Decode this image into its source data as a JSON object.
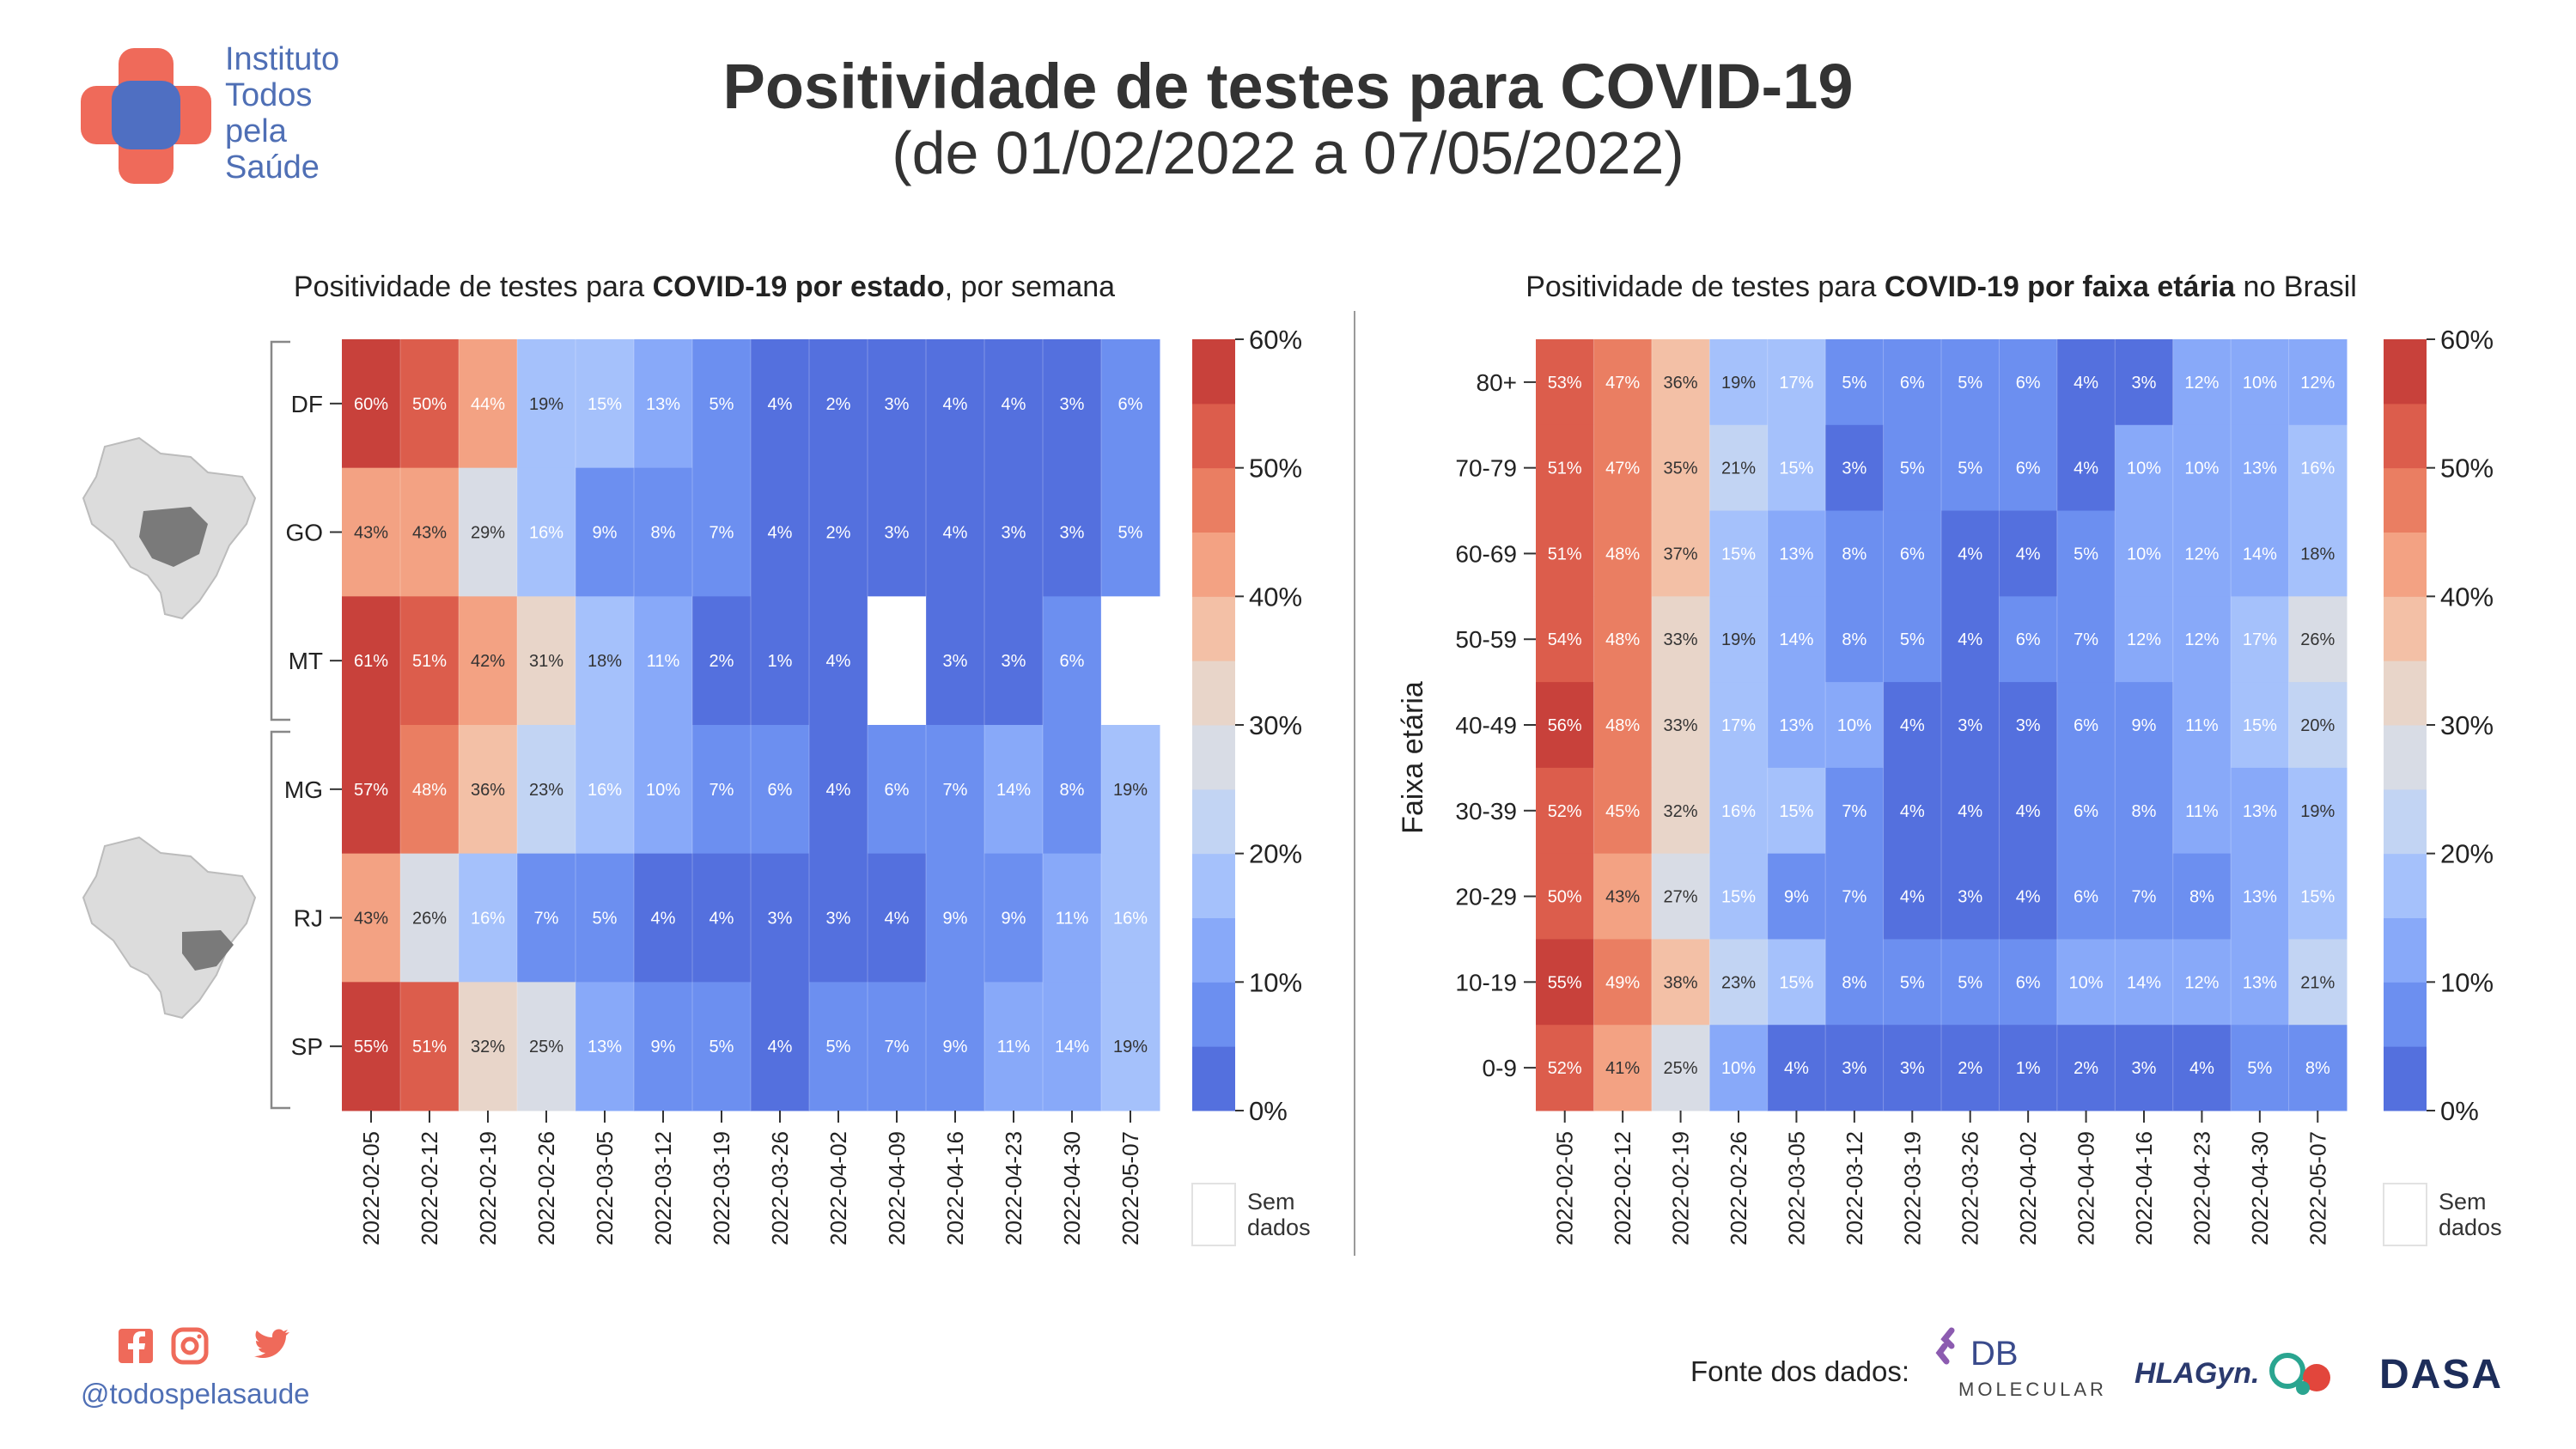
{
  "header": {
    "logo_lines": [
      "Instituto",
      "Todos",
      "pela",
      "Saúde"
    ],
    "title": "Positividade de testes para COVID-19",
    "subtitle": "(de 01/02/2022 a 07/05/2022)"
  },
  "left_panel": {
    "title_pre": "Positividade de testes para ",
    "title_bold": "COVID-19 por estado",
    "title_post": ", por semana"
  },
  "right_panel": {
    "title_pre": "Positividade de testes para ",
    "title_bold": "COVID-19 por faixa etária",
    "title_post": " no Brasil"
  },
  "colorbar": {
    "ticks": [
      "0%",
      "10%",
      "20%",
      "30%",
      "40%",
      "50%",
      "60%"
    ],
    "missing_label_line1": "Sem",
    "missing_label_line2": "dados",
    "colors": [
      "#5470de",
      "#6c8ff0",
      "#88a9f9",
      "#a5c1fb",
      "#c2d4f3",
      "#d8dce5",
      "#e8d5c9",
      "#f3c0a6",
      "#f3a283",
      "#ea7e62",
      "#dc5d4c",
      "#c8413b"
    ]
  },
  "chart_data": [
    {
      "type": "heatmap",
      "x": [
        "2022-02-05",
        "2022-02-12",
        "2022-02-19",
        "2022-02-26",
        "2022-03-05",
        "2022-03-12",
        "2022-03-19",
        "2022-03-26",
        "2022-04-02",
        "2022-04-09",
        "2022-04-16",
        "2022-04-23",
        "2022-04-30",
        "2022-05-07"
      ],
      "y": [
        "DF",
        "GO",
        "MT",
        "MG",
        "RJ",
        "SP"
      ],
      "values": [
        [
          60,
          50,
          44,
          19,
          15,
          13,
          5,
          4,
          2,
          3,
          4,
          4,
          3,
          6
        ],
        [
          43,
          43,
          29,
          16,
          9,
          8,
          7,
          4,
          2,
          3,
          4,
          3,
          3,
          5
        ],
        [
          61,
          51,
          42,
          31,
          18,
          11,
          2,
          1,
          4,
          null,
          3,
          3,
          6,
          null
        ],
        [
          57,
          48,
          36,
          23,
          16,
          10,
          7,
          6,
          4,
          6,
          7,
          14,
          8,
          19
        ],
        [
          43,
          26,
          16,
          7,
          5,
          4,
          4,
          3,
          3,
          4,
          9,
          9,
          11,
          16
        ],
        [
          55,
          51,
          32,
          25,
          13,
          9,
          5,
          4,
          5,
          7,
          9,
          11,
          14,
          19
        ]
      ],
      "zlim": [
        0,
        60
      ],
      "xlabel": "",
      "ylabel": ""
    },
    {
      "type": "heatmap",
      "x": [
        "2022-02-05",
        "2022-02-12",
        "2022-02-19",
        "2022-02-26",
        "2022-03-05",
        "2022-03-12",
        "2022-03-19",
        "2022-03-26",
        "2022-04-02",
        "2022-04-09",
        "2022-04-16",
        "2022-04-23",
        "2022-04-30",
        "2022-05-07"
      ],
      "y": [
        "80+",
        "70-79",
        "60-69",
        "50-59",
        "40-49",
        "30-39",
        "20-29",
        "10-19",
        "0-9"
      ],
      "values": [
        [
          53,
          47,
          36,
          19,
          17,
          5,
          6,
          5,
          6,
          4,
          3,
          12,
          10,
          12
        ],
        [
          51,
          47,
          35,
          21,
          15,
          3,
          5,
          5,
          6,
          4,
          10,
          10,
          13,
          16
        ],
        [
          51,
          48,
          37,
          15,
          13,
          8,
          6,
          4,
          4,
          5,
          10,
          12,
          14,
          18
        ],
        [
          54,
          48,
          33,
          19,
          14,
          8,
          5,
          4,
          6,
          7,
          12,
          12,
          17,
          26
        ],
        [
          56,
          48,
          33,
          17,
          13,
          10,
          4,
          3,
          3,
          6,
          9,
          11,
          15,
          20
        ],
        [
          52,
          45,
          32,
          16,
          15,
          7,
          4,
          4,
          4,
          6,
          8,
          11,
          13,
          19
        ],
        [
          50,
          43,
          27,
          15,
          9,
          7,
          4,
          3,
          4,
          6,
          7,
          8,
          13,
          15
        ],
        [
          55,
          49,
          38,
          23,
          15,
          8,
          5,
          5,
          6,
          10,
          14,
          12,
          13,
          21
        ],
        [
          52,
          41,
          25,
          10,
          4,
          3,
          3,
          2,
          1,
          2,
          3,
          4,
          5,
          8
        ]
      ],
      "zlim": [
        0,
        60
      ],
      "xlabel": "",
      "ylabel": "Faixa etária"
    }
  ],
  "footer": {
    "social_icons": [
      "facebook-icon",
      "instagram-icon",
      "twitter-icon"
    ],
    "handle": "@todospelasaude",
    "fonte_label": "Fonte dos dados:",
    "db_logo_text": "DB",
    "db_logo_sub": "MOLECULAR",
    "hlagyn_text": "HLAGyn.",
    "dasa_text": "DASA"
  }
}
